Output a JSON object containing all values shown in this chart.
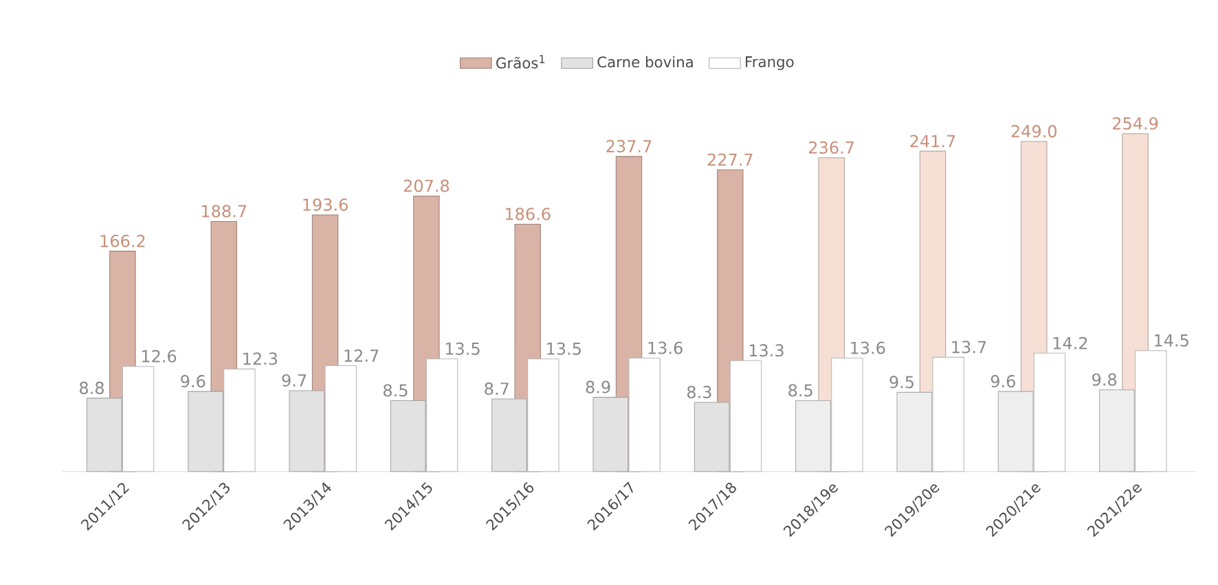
{
  "chart_data": {
    "type": "bar",
    "categories": [
      "2011/12",
      "2012/13",
      "2013/14",
      "2014/15",
      "2015/16",
      "2016/17",
      "2017/18",
      "2018/19e",
      "2019/20e",
      "2020/21e",
      "2021/22e"
    ],
    "series": [
      {
        "name": "Grãos$^{1}$",
        "color": "#d9b3a6",
        "colors": [
          "#d9b3a6",
          "#d9b3a6",
          "#d9b3a6",
          "#d9b3a6",
          "#d9b3a6",
          "#d9b3a6",
          "#d9b3a6",
          "#f6e0d6",
          "#f6e0d6",
          "#f6e0d6",
          "#f6e0d6"
        ],
        "values": [
          166.2,
          188.7,
          193.6,
          207.8,
          186.6,
          237.7,
          227.7,
          236.7,
          241.7,
          249.0,
          254.9
        ],
        "value_labels": [
          "166.2",
          "188.7",
          "193.6",
          "207.8",
          "186.6",
          "237.7",
          "227.7",
          "236.7",
          "241.7",
          "249.0",
          "254.9"
        ]
      },
      {
        "name": "Carne bovina",
        "color": "#e2e2e2",
        "colors": [
          "#e2e2e2",
          "#e2e2e2",
          "#e2e2e2",
          "#e2e2e2",
          "#e2e2e2",
          "#e2e2e2",
          "#e2e2e2",
          "#eeeeee",
          "#eeeeee",
          "#eeeeee",
          "#eeeeee"
        ],
        "axis": "y2",
        "values": [
          8.8,
          9.6,
          9.7,
          8.5,
          8.7,
          8.9,
          8.3,
          8.5,
          9.5,
          9.6,
          9.8
        ],
        "value_labels": [
          "8.8",
          "9.6",
          "9.7",
          "8.5",
          "8.7",
          "8.9",
          "8.3",
          "8.5",
          "9.5",
          "9.6",
          "9.8"
        ]
      },
      {
        "name": "Frango",
        "color": "#ffffff",
        "colors": [
          "#ffffff",
          "#ffffff",
          "#ffffff",
          "#ffffff",
          "#ffffff",
          "#ffffff",
          "#ffffff",
          "#ffffff",
          "#ffffff",
          "#ffffff",
          "#ffffff"
        ],
        "axis": "y2",
        "values": [
          12.6,
          12.3,
          12.7,
          13.5,
          13.5,
          13.6,
          13.3,
          13.6,
          13.7,
          14.2,
          14.5
        ],
        "value_labels": [
          "12.6",
          "12.3",
          "12.7",
          "13.5",
          "13.5",
          "13.6",
          "13.3",
          "13.6",
          "13.7",
          "14.2",
          "14.5"
        ]
      }
    ],
    "legend": "top",
    "tick_labels": "x",
    "grid": false
  }
}
